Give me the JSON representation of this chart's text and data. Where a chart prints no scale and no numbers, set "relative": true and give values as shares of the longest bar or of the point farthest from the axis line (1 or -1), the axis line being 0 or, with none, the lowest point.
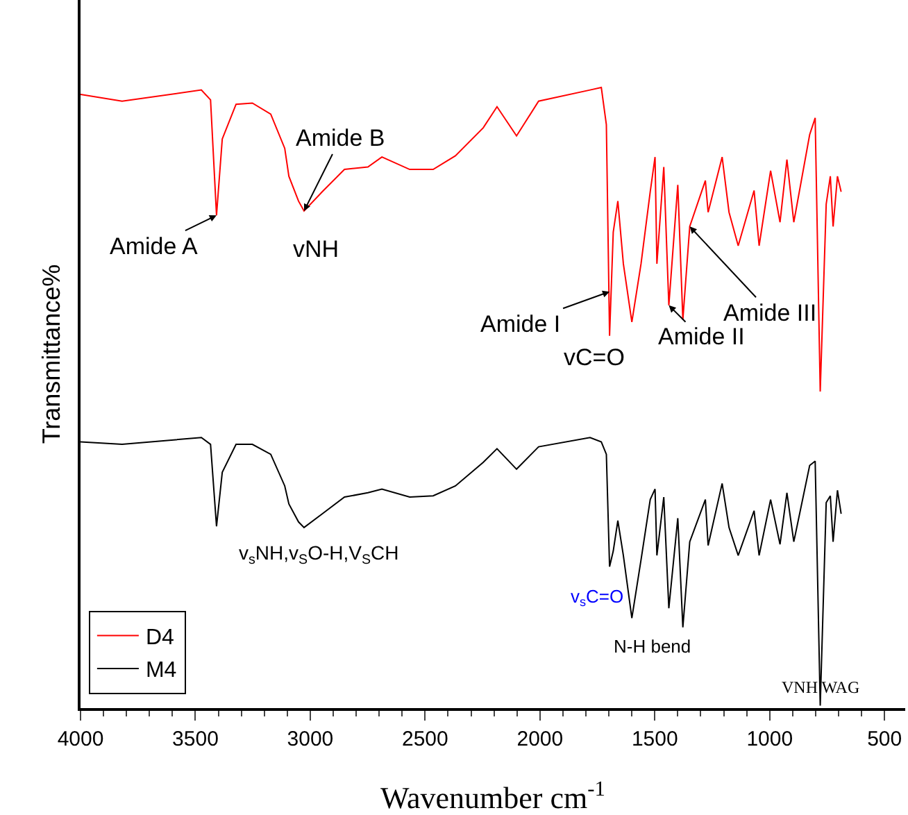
{
  "chart_data": {
    "type": "line",
    "relative": true,
    "xlabel": "Wavenumber cm$^{-1}$",
    "ylabel": "Transmittance%",
    "x": [
      4000,
      3819,
      3474,
      3434,
      3408,
      3383,
      3323,
      3252,
      3172,
      3111,
      3093,
      3051,
      3027,
      2948,
      2851,
      2749,
      2688,
      2567,
      2465,
      2368,
      2247,
      2187,
      2102,
      2006,
      1782,
      1733,
      1711,
      1697,
      1681,
      1661,
      1637,
      1600,
      1560,
      1520,
      1499,
      1491,
      1461,
      1439,
      1400,
      1378,
      1348,
      1280,
      1268,
      1207,
      1177,
      1137,
      1068,
      1046,
      996,
      955,
      925,
      895,
      826,
      802,
      780,
      754,
      736,
      724,
      705,
      689
    ],
    "xlim": [
      4000,
      410
    ],
    "xticks": [
      4000,
      3500,
      3000,
      2500,
      2000,
      1500,
      1000,
      500
    ],
    "series": [
      {
        "name": "D4",
        "color": "#ff0000",
        "values": [
          0.989,
          0.978,
          0.996,
          0.98,
          0.794,
          0.917,
          0.973,
          0.975,
          0.957,
          0.902,
          0.857,
          0.817,
          0.801,
          0.832,
          0.868,
          0.872,
          0.888,
          0.868,
          0.868,
          0.89,
          0.935,
          0.969,
          0.922,
          0.978,
          0.996,
          1.0,
          0.94,
          0.6,
          0.767,
          0.817,
          0.716,
          0.622,
          0.716,
          0.832,
          0.888,
          0.716,
          0.872,
          0.649,
          0.843,
          0.626,
          0.776,
          0.85,
          0.799,
          0.888,
          0.799,
          0.745,
          0.834,
          0.745,
          0.866,
          0.783,
          0.884,
          0.783,
          0.924,
          0.951,
          0.51,
          0.812,
          0.857,
          0.776,
          0.857,
          0.832
        ]
      },
      {
        "name": "M4",
        "color": "#000000",
        "values": [
          0.429,
          0.425,
          0.436,
          0.425,
          0.293,
          0.38,
          0.425,
          0.425,
          0.409,
          0.358,
          0.329,
          0.3,
          0.291,
          0.313,
          0.34,
          0.347,
          0.353,
          0.34,
          0.342,
          0.358,
          0.396,
          0.418,
          0.385,
          0.421,
          0.436,
          0.429,
          0.409,
          0.228,
          0.253,
          0.302,
          0.246,
          0.145,
          0.239,
          0.336,
          0.353,
          0.246,
          0.34,
          0.161,
          0.306,
          0.13,
          0.268,
          0.336,
          0.262,
          0.362,
          0.291,
          0.246,
          0.318,
          0.246,
          0.336,
          0.264,
          0.347,
          0.268,
          0.391,
          0.398,
          0.004,
          0.331,
          0.342,
          0.268,
          0.351,
          0.313
        ]
      }
    ],
    "annotations": [
      {
        "text": "Amide A",
        "x": 3408,
        "y": 0.794
      },
      {
        "text": "Amide B",
        "x": 3027,
        "y": 0.801
      },
      {
        "text": "vNH",
        "x": 3027,
        "y": 0.801
      },
      {
        "text": "Amide I",
        "x": 1697,
        "y": 0.671
      },
      {
        "text": "vC=O",
        "x": 1697,
        "y": 0.6
      },
      {
        "text": "Amide II",
        "x": 1439,
        "y": 0.649
      },
      {
        "text": "Amide III",
        "x": 1348,
        "y": 0.776
      },
      {
        "text": "v$_{s}$NH,v$_{S}$O-H,V$_{S}$CH",
        "x": 3027,
        "y": 0.291
      },
      {
        "text": "v$_{s}$C=O",
        "x": 1697,
        "y": 0.228
      },
      {
        "text": "N-H bend",
        "x": 1600,
        "y": 0.145
      },
      {
        "text": "VNH WAG",
        "x": 780,
        "y": 0.004
      }
    ],
    "legend": "bottom left",
    "marker": "none",
    "line_style": "solid"
  }
}
